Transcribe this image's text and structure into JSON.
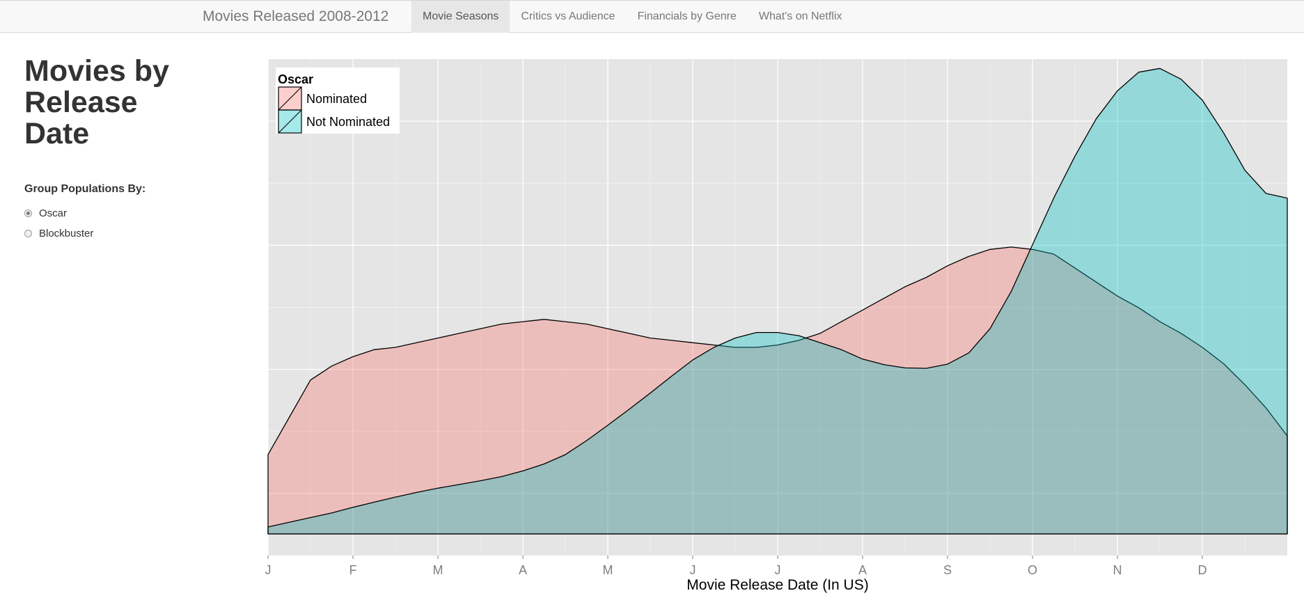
{
  "navbar": {
    "brand": "Movies Released 2008-2012",
    "tabs": [
      {
        "label": "Movie Seasons",
        "active": true
      },
      {
        "label": "Critics vs Audience",
        "active": false
      },
      {
        "label": "Financials by Genre",
        "active": false
      },
      {
        "label": "What's on Netflix",
        "active": false
      }
    ]
  },
  "sidebar": {
    "title": "Movies by Release Date",
    "group_label": "Group Populations By:",
    "options": [
      {
        "label": "Oscar",
        "selected": true
      },
      {
        "label": "Blockbuster",
        "selected": false
      }
    ]
  },
  "chart_data": {
    "type": "area",
    "title": "",
    "xlabel": "Movie Release Date (In US)",
    "ylabel": "",
    "x_ticks": [
      "J",
      "F",
      "M",
      "A",
      "M",
      "J",
      "J",
      "A",
      "S",
      "O",
      "N",
      "D"
    ],
    "xlim": [
      0,
      12
    ],
    "ylim": [
      0,
      1
    ],
    "grid": true,
    "legend": {
      "title": "Oscar",
      "position": "top-left"
    },
    "series": [
      {
        "name": "Nominated",
        "color": "#f8766d",
        "x": [
          0,
          0.25,
          0.5,
          0.75,
          1,
          1.25,
          1.5,
          1.75,
          2,
          2.25,
          2.5,
          2.75,
          3,
          3.25,
          3.5,
          3.75,
          4,
          4.25,
          4.5,
          4.75,
          5,
          5.25,
          5.5,
          5.75,
          6,
          6.25,
          6.5,
          6.75,
          7,
          7.25,
          7.5,
          7.75,
          8,
          8.25,
          8.5,
          8.75,
          9,
          9.25,
          9.5,
          9.75,
          10,
          10.25,
          10.5,
          10.75,
          11,
          11.25,
          11.5,
          11.75,
          12
        ],
        "y": [
          0.17,
          0.25,
          0.33,
          0.36,
          0.38,
          0.395,
          0.4,
          0.41,
          0.42,
          0.43,
          0.44,
          0.45,
          0.455,
          0.46,
          0.455,
          0.45,
          0.44,
          0.43,
          0.42,
          0.415,
          0.41,
          0.405,
          0.4,
          0.4,
          0.405,
          0.415,
          0.43,
          0.455,
          0.48,
          0.505,
          0.53,
          0.55,
          0.575,
          0.595,
          0.61,
          0.615,
          0.61,
          0.6,
          0.57,
          0.54,
          0.51,
          0.485,
          0.455,
          0.43,
          0.4,
          0.365,
          0.32,
          0.27,
          0.21
        ]
      },
      {
        "name": "Not Nominated",
        "color": "#00bfc4",
        "x": [
          0,
          0.25,
          0.5,
          0.75,
          1,
          1.25,
          1.5,
          1.75,
          2,
          2.25,
          2.5,
          2.75,
          3,
          3.25,
          3.5,
          3.75,
          4,
          4.25,
          4.5,
          4.75,
          5,
          5.25,
          5.5,
          5.75,
          6,
          6.25,
          6.5,
          6.75,
          7,
          7.25,
          7.5,
          7.75,
          8,
          8.25,
          8.5,
          8.75,
          9,
          9.25,
          9.5,
          9.75,
          10,
          10.25,
          10.5,
          10.75,
          11,
          11.25,
          11.5,
          11.75,
          12
        ],
        "y": [
          0.015,
          0.025,
          0.035,
          0.045,
          0.057,
          0.068,
          0.079,
          0.089,
          0.098,
          0.106,
          0.114,
          0.123,
          0.135,
          0.15,
          0.17,
          0.2,
          0.233,
          0.267,
          0.302,
          0.338,
          0.373,
          0.4,
          0.42,
          0.432,
          0.432,
          0.425,
          0.41,
          0.395,
          0.375,
          0.363,
          0.356,
          0.355,
          0.364,
          0.388,
          0.44,
          0.52,
          0.62,
          0.72,
          0.81,
          0.89,
          0.95,
          0.99,
          0.998,
          0.975,
          0.93,
          0.86,
          0.78,
          0.73,
          0.72
        ]
      }
    ]
  }
}
